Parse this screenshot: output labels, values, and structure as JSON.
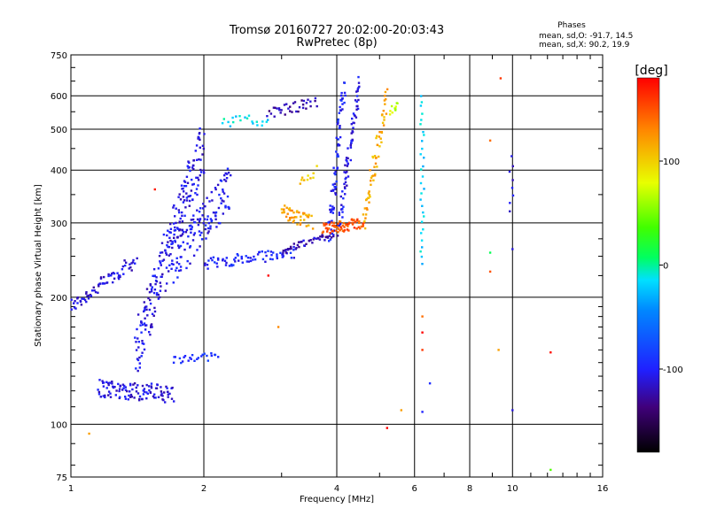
{
  "chart_data": {
    "type": "scatter",
    "title": "Tromsø 20160727 20:02:00-20:03:43",
    "subtitle": "RwPretec (8p)",
    "xlabel": "Frequency [MHz]",
    "ylabel": "Stationary phase Virtual Height [km]",
    "xscale": "log",
    "yscale": "log",
    "xlim": [
      1,
      16
    ],
    "ylim": [
      75,
      750
    ],
    "xticks": [
      1,
      2,
      4,
      6,
      8,
      10,
      16
    ],
    "xtick_labels": [
      "1",
      "2",
      "4",
      "6",
      "8",
      "10",
      "16"
    ],
    "yticks": [
      75,
      100,
      200,
      300,
      400,
      500,
      600,
      750
    ],
    "ytick_labels": [
      "75",
      "100",
      "200",
      "300",
      "400",
      "500",
      "600",
      "750"
    ],
    "grid": true,
    "phases_header": {
      "title": "Phases",
      "line1": "mean, sd,O: -91.7, 14.5",
      "line2": "mean, sd,X:  90.2, 19.9"
    },
    "colorbar": {
      "label": "[deg]",
      "range": [
        -180,
        180
      ],
      "ticks": [
        -100,
        0,
        100
      ],
      "tick_labels": [
        "-100",
        "0",
        "100"
      ]
    },
    "traces": [
      {
        "x0": 1.0,
        "x1": 1.4,
        "h0": 190,
        "h1": 245,
        "phase": -112,
        "n": 70,
        "jitter": 0.04
      },
      {
        "x0": 1.15,
        "x1": 1.7,
        "h0": 122,
        "h1": 118,
        "phase": -110,
        "n": 110,
        "jitter": 0.05
      },
      {
        "x0": 1.7,
        "x1": 2.15,
        "h0": 142,
        "h1": 145,
        "phase": -95,
        "n": 25,
        "jitter": 0.02
      },
      {
        "x0": 1.4,
        "x1": 2.0,
        "h0": 150,
        "h1": 470,
        "phase": -108,
        "n": 220,
        "jitter": 0.15
      },
      {
        "x0": 1.7,
        "x1": 2.3,
        "h0": 240,
        "h1": 370,
        "phase": -105,
        "n": 130,
        "jitter": 0.12
      },
      {
        "x0": 2.0,
        "x1": 3.2,
        "h0": 240,
        "h1": 255,
        "phase": -98,
        "n": 70,
        "jitter": 0.03
      },
      {
        "x0": 3.0,
        "x1": 4.0,
        "h0": 257,
        "h1": 285,
        "phase": -120,
        "n": 50,
        "jitter": 0.02
      },
      {
        "x0": 2.2,
        "x1": 2.8,
        "h0": 520,
        "h1": 525,
        "phase": -15,
        "n": 20,
        "jitter": 0.03
      },
      {
        "x0": 2.8,
        "x1": 3.6,
        "h0": 545,
        "h1": 580,
        "phase": -125,
        "n": 35,
        "jitter": 0.03
      },
      {
        "x0": 3.85,
        "x1": 4.15,
        "h0": 280,
        "h1": 640,
        "phase": -100,
        "n": 70,
        "jitter": 0.05
      },
      {
        "x0": 4.05,
        "x1": 4.5,
        "h0": 300,
        "h1": 640,
        "phase": -108,
        "n": 70,
        "jitter": 0.05
      },
      {
        "x0": 3.0,
        "x1": 3.5,
        "h0": 320,
        "h1": 300,
        "phase": 120,
        "n": 45,
        "jitter": 0.04
      },
      {
        "x0": 3.7,
        "x1": 4.6,
        "h0": 290,
        "h1": 300,
        "phase": 150,
        "n": 70,
        "jitter": 0.03
      },
      {
        "x0": 4.6,
        "x1": 5.2,
        "h0": 300,
        "h1": 600,
        "phase": 115,
        "n": 60,
        "jitter": 0.05
      },
      {
        "x0": 5.3,
        "x1": 5.5,
        "h0": 550,
        "h1": 570,
        "phase": 70,
        "n": 10,
        "jitter": 0.02
      },
      {
        "x0": 3.3,
        "x1": 3.6,
        "h0": 380,
        "h1": 400,
        "phase": 100,
        "n": 10,
        "jitter": 0.03
      },
      {
        "x0": 6.25,
        "x1": 6.25,
        "h0": 240,
        "h1": 600,
        "phase": -20,
        "n": 30,
        "jitter": 0.01
      },
      {
        "x0": 9.95,
        "x1": 9.95,
        "h0": 320,
        "h1": 430,
        "phase": -115,
        "n": 8,
        "jitter": 0.01
      }
    ],
    "isolated_points": [
      {
        "x": 1.1,
        "y": 95,
        "phase": 120
      },
      {
        "x": 1.55,
        "y": 360,
        "phase": 170
      },
      {
        "x": 2.8,
        "y": 225,
        "phase": 180
      },
      {
        "x": 2.95,
        "y": 170,
        "phase": 130
      },
      {
        "x": 5.2,
        "y": 98,
        "phase": 180
      },
      {
        "x": 5.6,
        "y": 108,
        "phase": 120
      },
      {
        "x": 6.25,
        "y": 180,
        "phase": 140
      },
      {
        "x": 6.25,
        "y": 165,
        "phase": 180
      },
      {
        "x": 6.25,
        "y": 150,
        "phase": 160
      },
      {
        "x": 6.25,
        "y": 107,
        "phase": -100
      },
      {
        "x": 6.5,
        "y": 125,
        "phase": -95
      },
      {
        "x": 8.9,
        "y": 470,
        "phase": 140
      },
      {
        "x": 8.9,
        "y": 230,
        "phase": 150
      },
      {
        "x": 8.9,
        "y": 255,
        "phase": 10
      },
      {
        "x": 9.3,
        "y": 150,
        "phase": 120
      },
      {
        "x": 9.4,
        "y": 660,
        "phase": 160
      },
      {
        "x": 10.0,
        "y": 260,
        "phase": -110
      },
      {
        "x": 10.0,
        "y": 108,
        "phase": -110
      },
      {
        "x": 12.2,
        "y": 148,
        "phase": 175
      },
      {
        "x": 12.2,
        "y": 78,
        "phase": 40
      }
    ]
  }
}
